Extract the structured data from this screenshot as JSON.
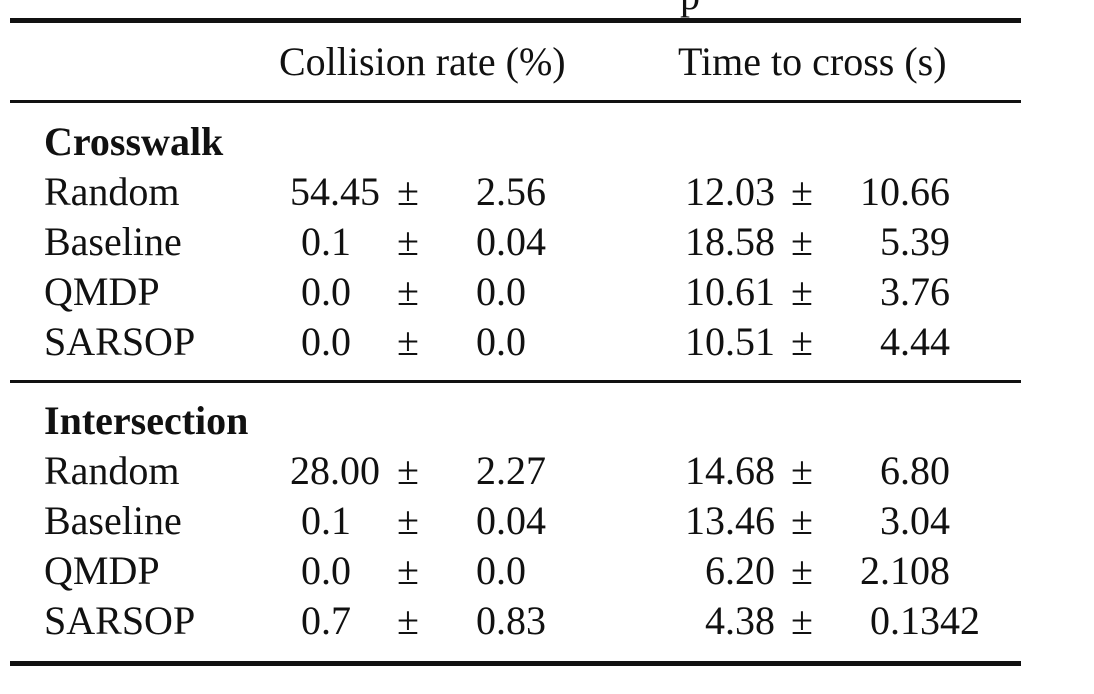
{
  "caption_fragment": "p",
  "table": {
    "headers": {
      "method": "",
      "collision": "Collision rate (%)",
      "time": "Time to cross (s)"
    },
    "pm": "±",
    "groups": [
      {
        "name": "Crosswalk",
        "rows": [
          {
            "method": "Random",
            "coll_mean": "54.45",
            "coll_std": "2.56",
            "time_mean": "12.03",
            "time_std": "10.66"
          },
          {
            "method": "Baseline",
            "coll_mean": "0.1",
            "coll_std": "0.04",
            "time_mean": "18.58",
            "time_std": "5.39"
          },
          {
            "method": "QMDP",
            "coll_mean": "0.0",
            "coll_std": "0.0",
            "time_mean": "10.61",
            "time_std": "3.76"
          },
          {
            "method": "SARSOP",
            "coll_mean": "0.0",
            "coll_std": "0.0",
            "time_mean": "10.51",
            "time_std": "4.44"
          }
        ]
      },
      {
        "name": "Intersection",
        "rows": [
          {
            "method": "Random",
            "coll_mean": "28.00",
            "coll_std": "2.27",
            "time_mean": "14.68",
            "time_std": "6.80"
          },
          {
            "method": "Baseline",
            "coll_mean": "0.1",
            "coll_std": "0.04",
            "time_mean": "13.46",
            "time_std": "3.04"
          },
          {
            "method": "QMDP",
            "coll_mean": "0.0",
            "coll_std": "0.0",
            "time_mean": "6.20",
            "time_std": "2.108"
          },
          {
            "method": "SARSOP",
            "coll_mean": "0.7",
            "coll_std": "0.83",
            "time_mean": "4.38",
            "time_std": "0.1342"
          }
        ]
      }
    ]
  }
}
